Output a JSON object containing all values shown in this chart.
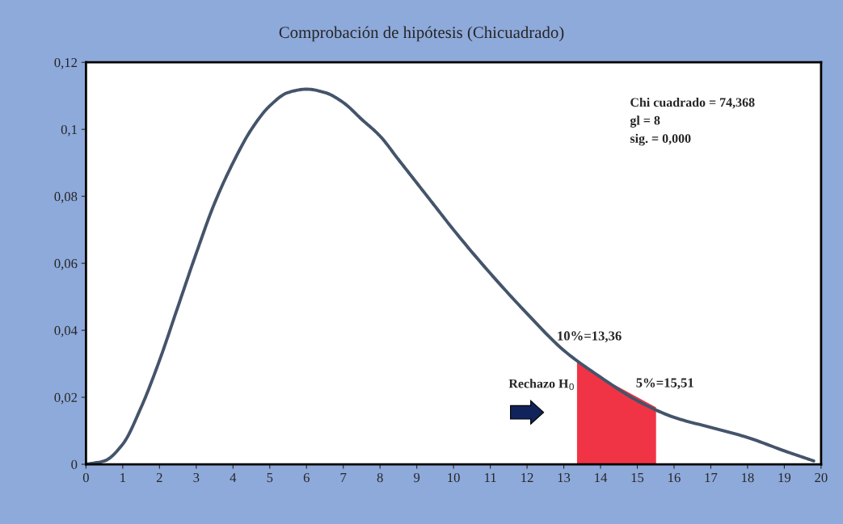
{
  "chart_data": {
    "type": "line",
    "title": "Comprobación de hipótesis (Chicuadrado)",
    "series": [
      {
        "color": "#44546a",
        "x": [
          0,
          0.5,
          1,
          1.5,
          2,
          2.5,
          3,
          3.5,
          4,
          4.5,
          5,
          5.5,
          6,
          6.5,
          7,
          7.5,
          8,
          8.5,
          9,
          9.5,
          10,
          11,
          12,
          13,
          14,
          15,
          16,
          17,
          18,
          19,
          19.8
        ],
        "values": [
          0,
          0.001,
          0.006,
          0.017,
          0.031,
          0.047,
          0.063,
          0.078,
          0.09,
          0.1,
          0.107,
          0.111,
          0.112,
          0.111,
          0.108,
          0.103,
          0.098,
          0.091,
          0.084,
          0.077,
          0.07,
          0.057,
          0.045,
          0.034,
          0.026,
          0.019,
          0.014,
          0.011,
          0.008,
          0.004,
          0.001
        ]
      },
      {
        "type": "area",
        "color": "#f03446",
        "x": [
          13.36,
          14,
          15.51
        ],
        "values": [
          0.031,
          0.026,
          0.017
        ]
      }
    ],
    "xlim": [
      0,
      20
    ],
    "xticks": [
      0,
      1,
      2,
      3,
      4,
      5,
      6,
      7,
      8,
      9,
      10,
      11,
      12,
      13,
      14,
      15,
      16,
      17,
      18,
      19,
      20
    ],
    "ylim": [
      0,
      0.12
    ],
    "yticks": [
      0,
      {
        "value": 0.02,
        "label": "0,02"
      },
      {
        "value": 0.04,
        "label": "0,04"
      },
      {
        "value": 0.06,
        "label": "0,06"
      },
      {
        "value": 0.08,
        "label": "0,08"
      },
      {
        "value": 0.1,
        "label": "0,1"
      },
      {
        "value": 0.12,
        "label": "0,12"
      }
    ],
    "annotations": [
      "Chi cuadrado = 74,368",
      "gl = 8",
      "sig. = 0,000",
      "Rechazo H$_{0}$",
      {
        "text": "10%=13,36",
        "x": 13.36,
        "y": 0.031
      },
      {
        "text": "5%=15,51",
        "x": 15.51,
        "y": 0.017
      }
    ],
    "grid": false,
    "legend": false
  }
}
